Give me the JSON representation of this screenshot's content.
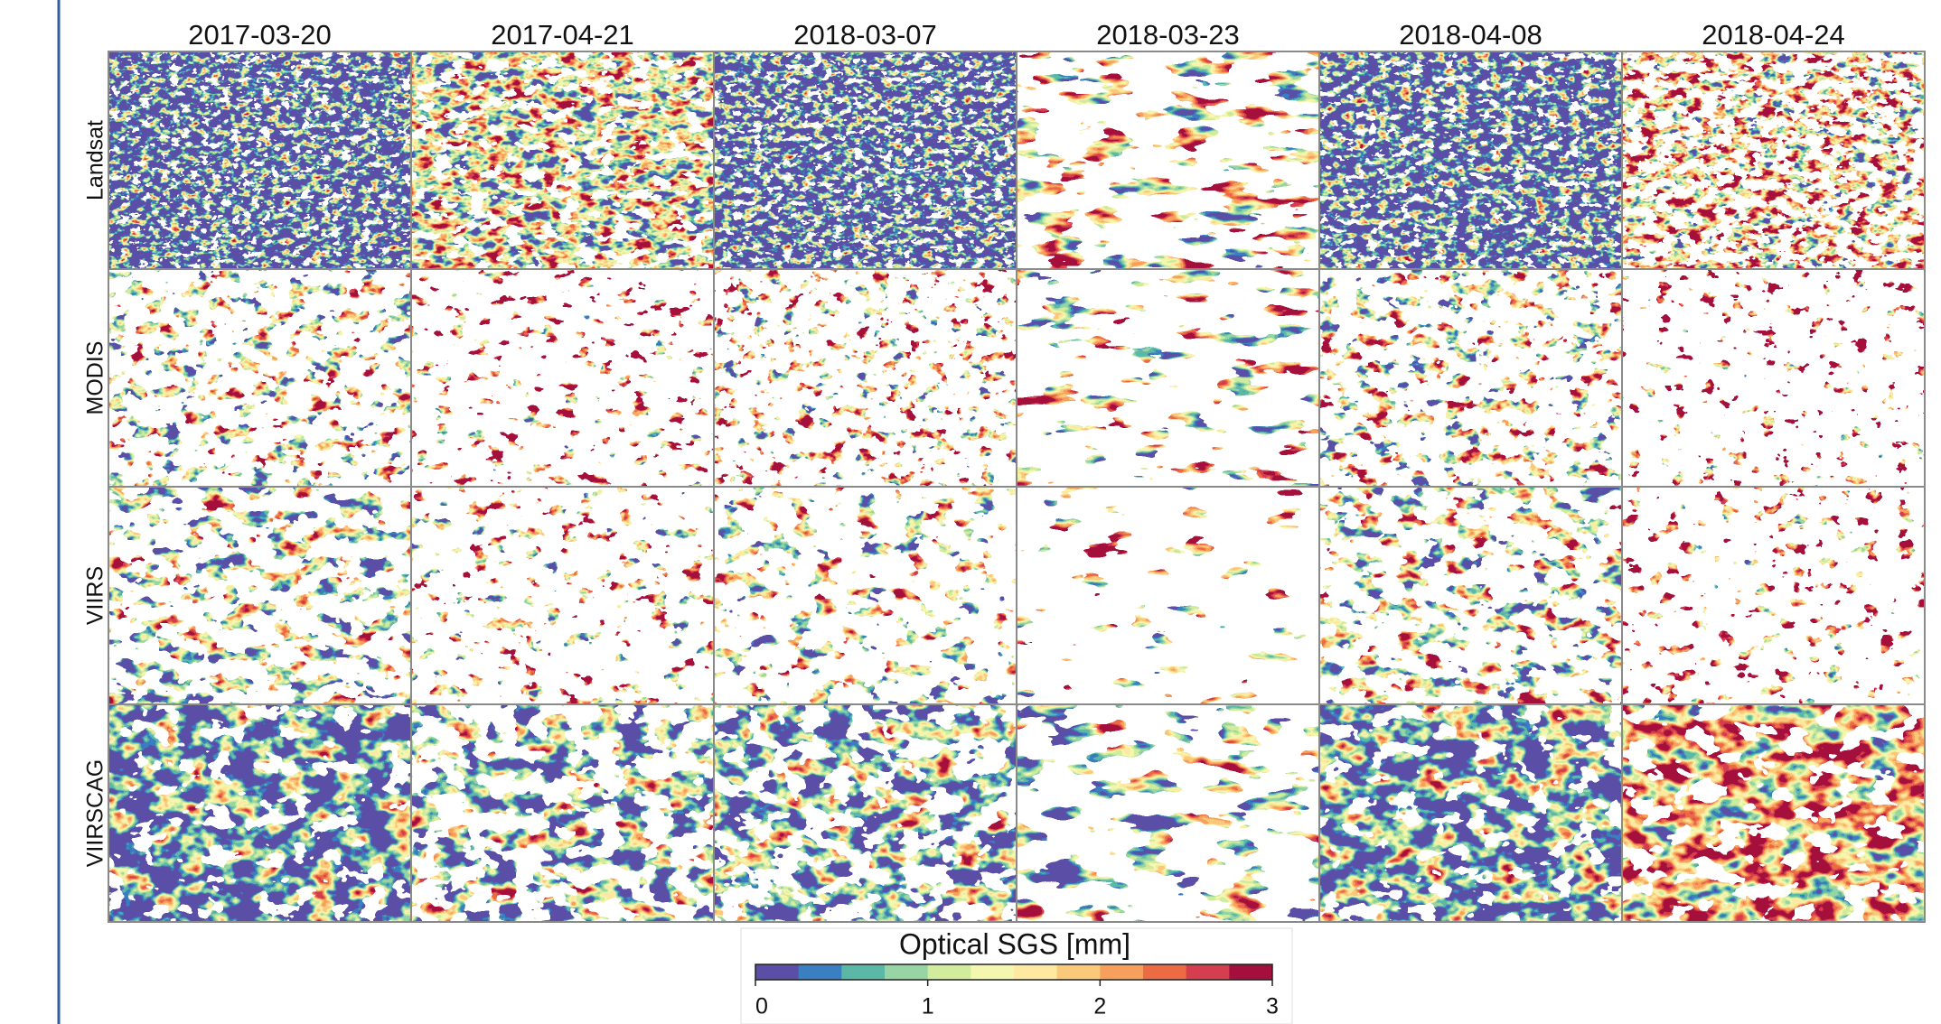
{
  "figure": {
    "columns": [
      "2017-03-20",
      "2017-04-21",
      "2018-03-07",
      "2018-03-23",
      "2018-04-08",
      "2018-04-24"
    ],
    "rows": [
      "Landsat",
      "MODIS",
      "VIIRS",
      "VIIRSCAG"
    ],
    "colorbar": {
      "title": "Optical SGS [mm]",
      "lim": [
        0,
        3
      ],
      "ticks": [
        0,
        1,
        2,
        3
      ],
      "colors": [
        "#5a4ea6",
        "#3a7fc1",
        "#5cb8a6",
        "#98d5a4",
        "#d0ec9c",
        "#f4f7b0",
        "#fde9a0",
        "#fbc97a",
        "#f7a05c",
        "#ec6a44",
        "#d53e4f",
        "#a50f3d"
      ]
    }
  }
}
